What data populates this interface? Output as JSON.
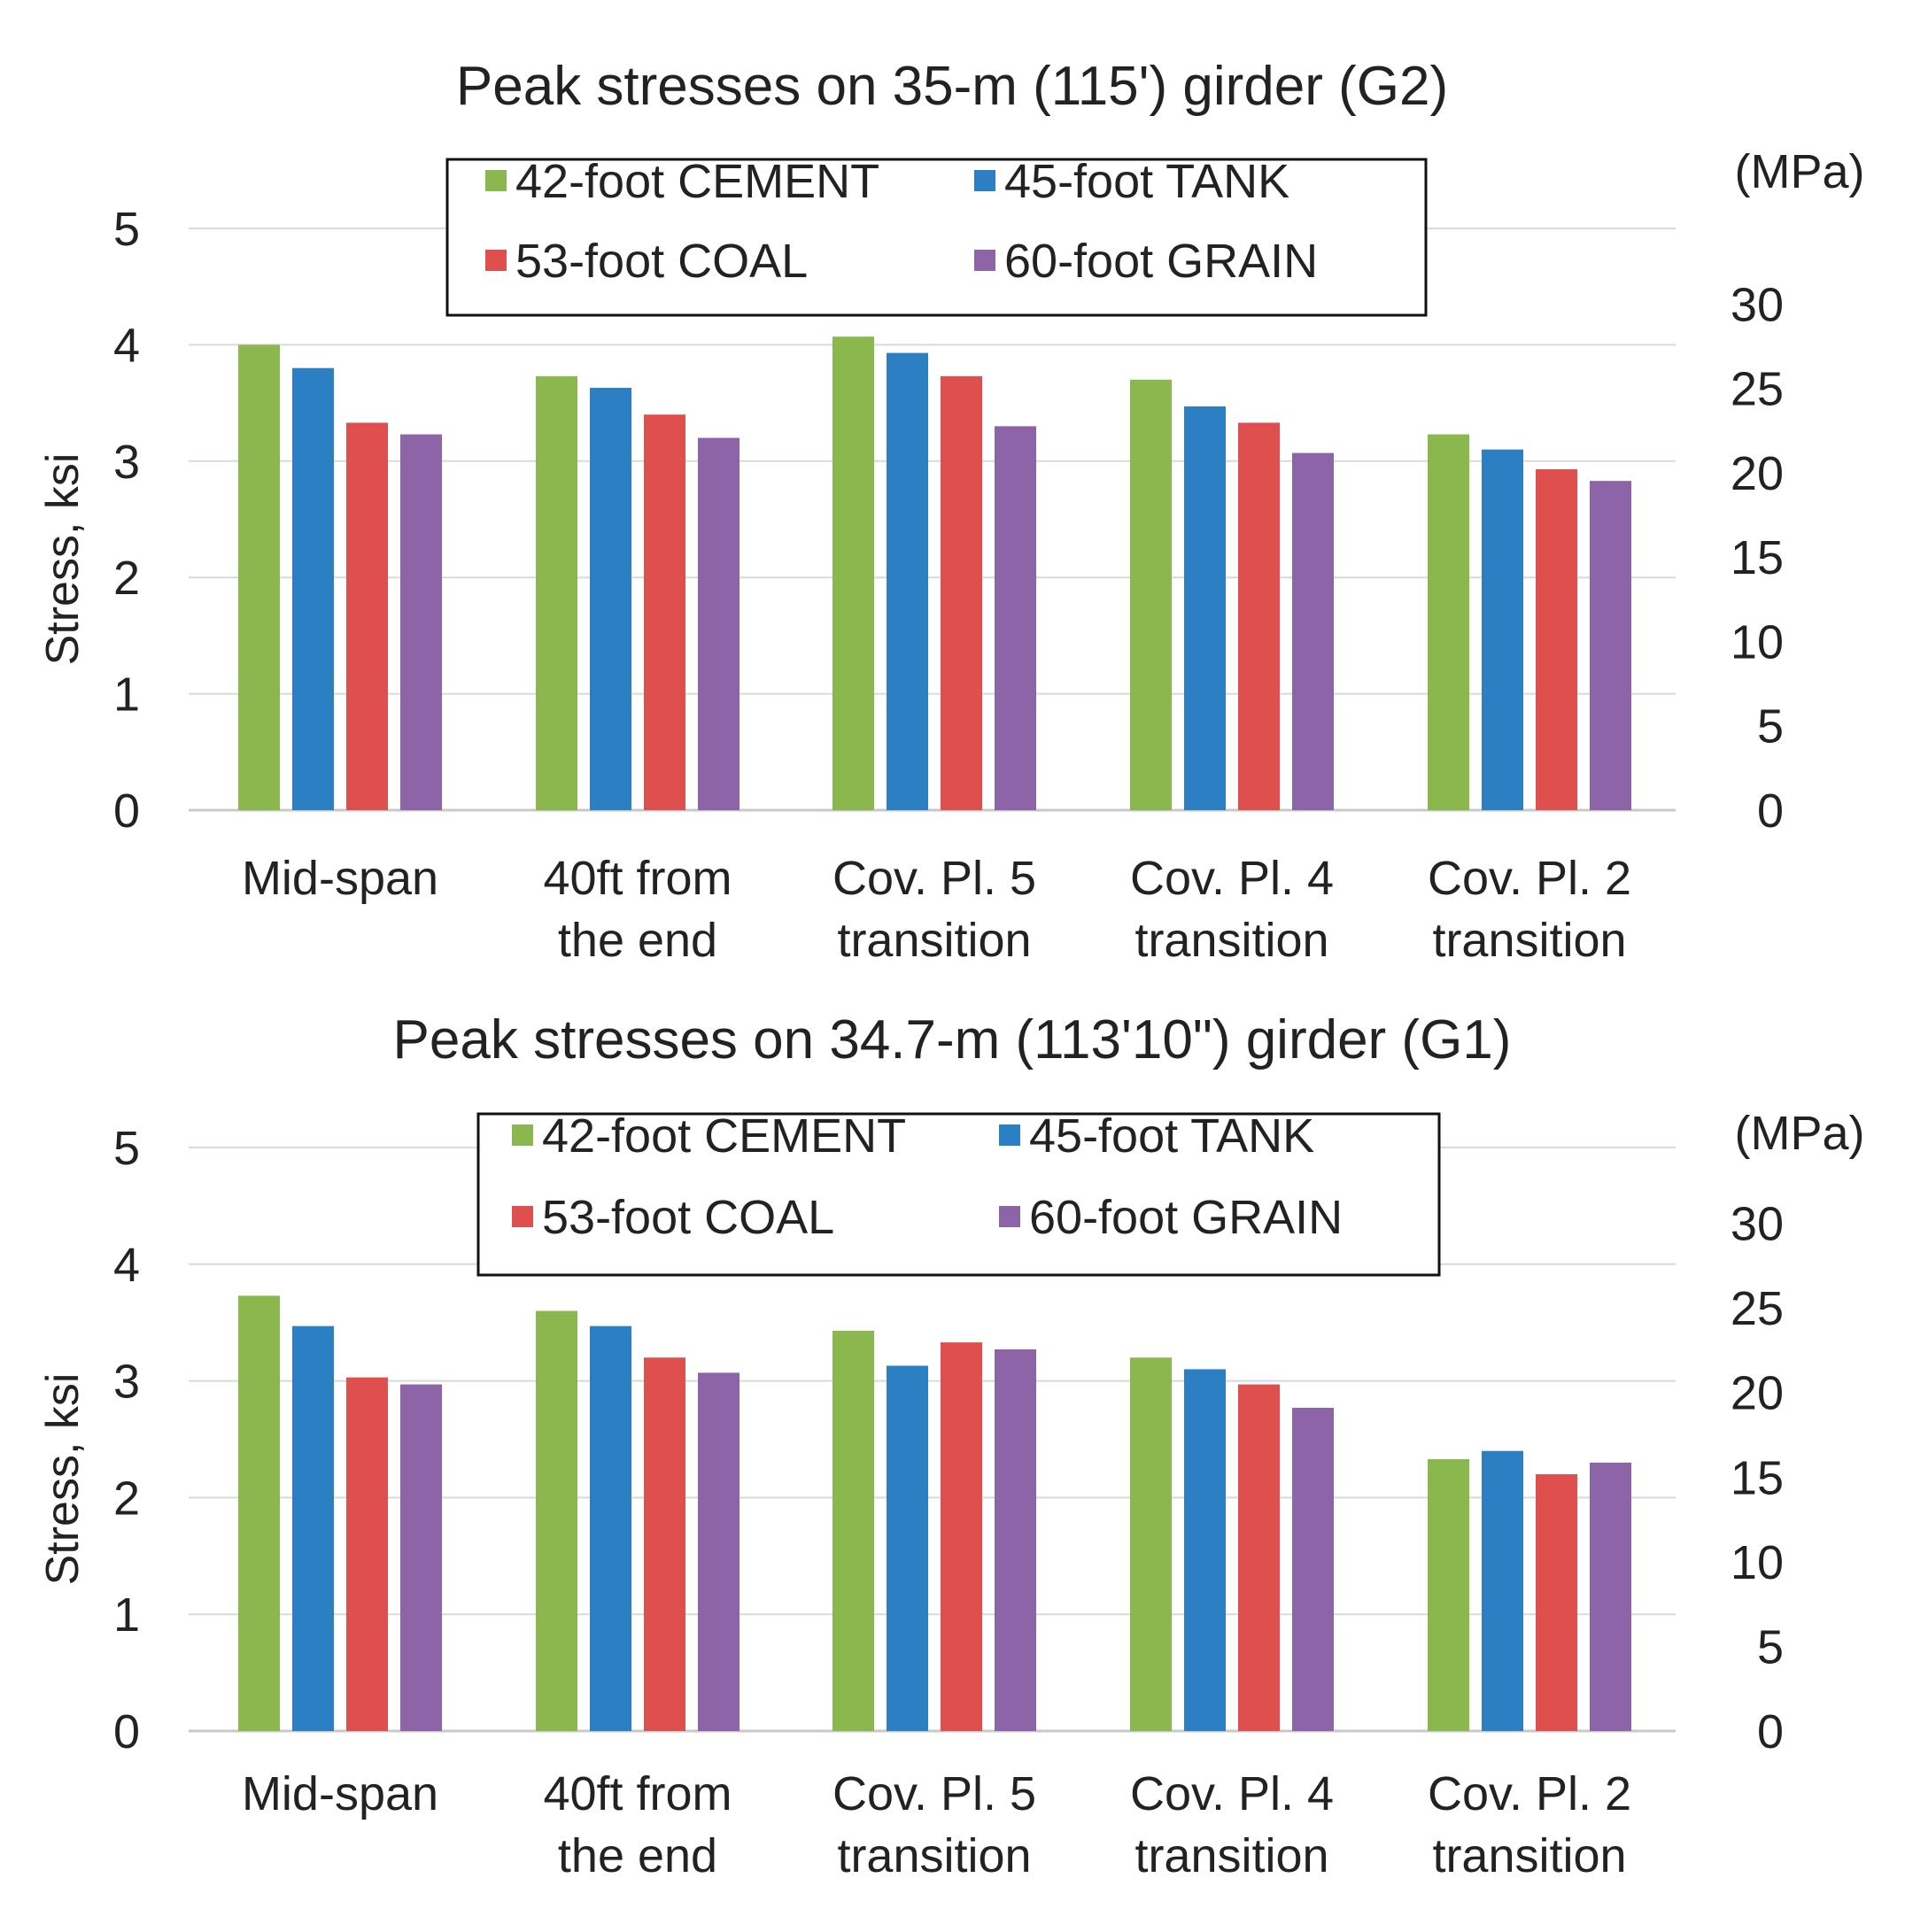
{
  "chart_data": [
    {
      "type": "bar",
      "title": "Peak stresses on 35-m (115') girder (G2)",
      "ylabel": "Stress, ksi",
      "ylim": [
        0,
        5
      ],
      "yticks": [
        "0",
        "1",
        "2",
        "3",
        "4",
        "5"
      ],
      "secondary_axis": {
        "unit_label": "(MPa)",
        "ticks": [
          "0",
          "5",
          "10",
          "15",
          "20",
          "25",
          "30"
        ],
        "ticks_ksi": [
          0,
          0.7252,
          1.4504,
          2.1756,
          2.9008,
          3.626,
          4.3511
        ]
      },
      "grid": true,
      "legend_position": "top",
      "categories": [
        [
          "Mid-span"
        ],
        [
          "40ft from",
          "the end"
        ],
        [
          "Cov. Pl. 5",
          "transition"
        ],
        [
          "Cov. Pl. 4",
          "transition"
        ],
        [
          "Cov. Pl. 2",
          "transition"
        ]
      ],
      "series": [
        {
          "name": "42-foot CEMENT",
          "color": "#8ab84f",
          "values": [
            4.0,
            3.73,
            4.07,
            3.7,
            3.23
          ]
        },
        {
          "name": "45-foot TANK",
          "color": "#2b7fc2",
          "values": [
            3.8,
            3.63,
            3.93,
            3.47,
            3.1
          ]
        },
        {
          "name": "53-foot COAL",
          "color": "#df4f4d",
          "values": [
            3.33,
            3.4,
            3.73,
            3.33,
            2.93
          ]
        },
        {
          "name": "60-foot GRAIN",
          "color": "#8d64a8",
          "values": [
            3.23,
            3.2,
            3.3,
            3.07,
            2.83
          ]
        }
      ]
    },
    {
      "type": "bar",
      "title": "Peak stresses on 34.7-m (113'10\") girder (G1)",
      "ylabel": "Stress, ksi",
      "ylim": [
        0,
        5
      ],
      "yticks": [
        "0",
        "1",
        "2",
        "3",
        "4",
        "5"
      ],
      "secondary_axis": {
        "unit_label": "(MPa)",
        "ticks": [
          "0",
          "5",
          "10",
          "15",
          "20",
          "25",
          "30"
        ],
        "ticks_ksi": [
          0,
          0.7252,
          1.4504,
          2.1756,
          2.9008,
          3.626,
          4.3511
        ]
      },
      "grid": true,
      "legend_position": "top",
      "categories": [
        [
          "Mid-span"
        ],
        [
          "40ft from",
          "the end"
        ],
        [
          "Cov. Pl. 5",
          "transition"
        ],
        [
          "Cov. Pl. 4",
          "transition"
        ],
        [
          "Cov. Pl. 2",
          "transition"
        ]
      ],
      "series": [
        {
          "name": "42-foot CEMENT",
          "color": "#8ab84f",
          "values": [
            3.73,
            3.6,
            3.43,
            3.2,
            2.33
          ]
        },
        {
          "name": "45-foot TANK",
          "color": "#2b7fc2",
          "values": [
            3.47,
            3.47,
            3.13,
            3.1,
            2.4
          ]
        },
        {
          "name": "53-foot COAL",
          "color": "#df4f4d",
          "values": [
            3.03,
            3.2,
            3.33,
            2.97,
            2.2
          ]
        },
        {
          "name": "60-foot GRAIN",
          "color": "#8d64a8",
          "values": [
            2.97,
            3.07,
            3.27,
            2.77,
            2.3
          ]
        }
      ]
    }
  ]
}
